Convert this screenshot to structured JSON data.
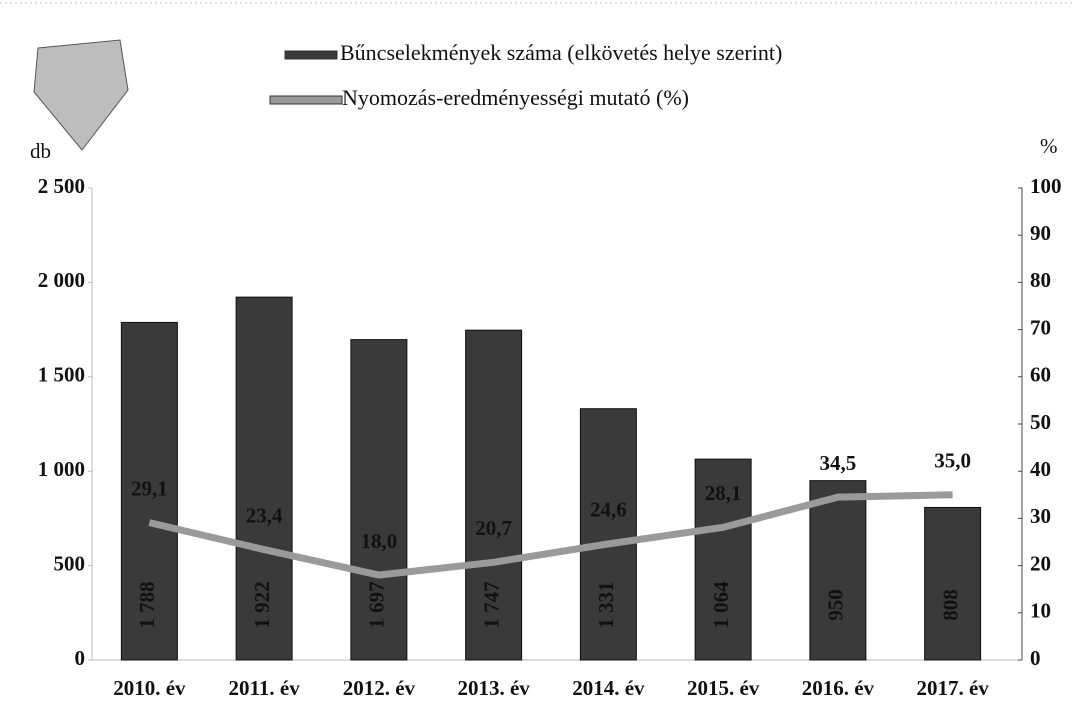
{
  "chart_data": {
    "type": "bar",
    "categories": [
      "2010. év",
      "2011. év",
      "2012. év",
      "2013. év",
      "2014. év",
      "2015. év",
      "2016. év",
      "2017. év"
    ],
    "series": [
      {
        "name": "Bűncselekmények száma (elkövetés helye szerint)",
        "type": "bar",
        "color": "#3a3a3a",
        "values": [
          1788,
          1922,
          1697,
          1747,
          1331,
          1064,
          950,
          808
        ],
        "value_labels": [
          "1 788",
          "1 922",
          "1 697",
          "1 747",
          "1 331",
          "1 064",
          "950",
          "808"
        ]
      },
      {
        "name": "Nyomozás-eredményességi mutató (%)",
        "type": "line",
        "axis": "y2",
        "color": "#9a9a9a",
        "values": [
          29.1,
          23.4,
          18.0,
          20.7,
          24.6,
          28.1,
          34.5,
          35.0
        ],
        "value_labels": [
          "29,1",
          "23,4",
          "18,0",
          "20,7",
          "24,6",
          "28,1",
          "34,5",
          "35,0"
        ]
      }
    ],
    "ylabel": "db",
    "y2label": "%",
    "ylim": [
      0,
      2500
    ],
    "yticks": [
      0,
      500,
      {
        "value": 1000,
        "label": "1 000"
      },
      {
        "value": 1500,
        "label": "1 500"
      },
      {
        "value": 2000,
        "label": "2 000"
      },
      {
        "value": 2500,
        "label": "2 500"
      }
    ],
    "y2lim": [
      0,
      100
    ],
    "y2ticks": [
      0,
      10,
      20,
      30,
      40,
      50,
      60,
      70,
      80,
      90,
      100
    ]
  }
}
